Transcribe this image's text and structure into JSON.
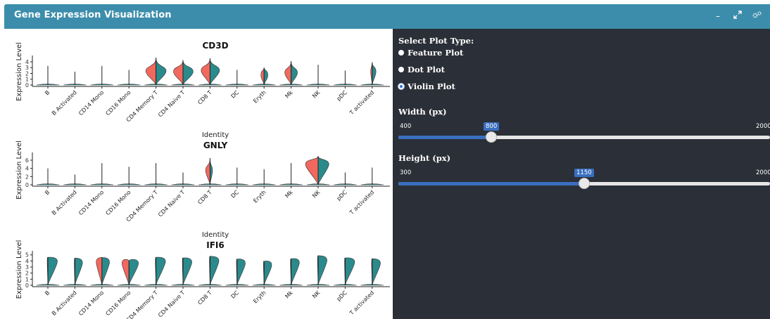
{
  "header": {
    "title": "Gene Expression Visualization",
    "color": "#3c8dab"
  },
  "controls": {
    "plot_type_label": "Select Plot Type:",
    "plot_types": [
      {
        "label": "Feature Plot",
        "selected": false
      },
      {
        "label": "Dot Plot",
        "selected": false
      },
      {
        "label": "Violin Plot",
        "selected": true
      }
    ],
    "width": {
      "label": "Width (px)",
      "min": 400,
      "max": 2000,
      "value": 800,
      "min_text": "400",
      "max_text": "2000",
      "value_text": "800"
    },
    "height": {
      "label": "Height (px)",
      "min": 300,
      "max": 2000,
      "value": 1150,
      "min_text": "300",
      "max_text": "2000",
      "value_text": "1150"
    }
  },
  "chart_data": {
    "type": "violin",
    "split_colors": {
      "left": "#f0685e",
      "right": "#2a8a8c"
    },
    "categories": [
      "B",
      "B Activated",
      "CD14 Mono",
      "CD16 Mono",
      "CD4 Memory T",
      "CD4 Naive T",
      "CD8 T",
      "DC",
      "Eryth",
      "Mk",
      "NK",
      "pDC",
      "T activated"
    ],
    "ylabel": "Expression Level",
    "xlabel": "Identity",
    "panels": [
      {
        "title": "CD3D",
        "ylim": [
          0,
          4.6
        ],
        "ticks": [
          "0",
          "1",
          "2",
          "3",
          "4"
        ],
        "tick_values": [
          0,
          1,
          2,
          3,
          4
        ],
        "max_values": [
          3.3,
          2.3,
          3.3,
          2.6,
          4.7,
          4.3,
          4.6,
          2.6,
          3.0,
          4.1,
          3.5,
          2.5,
          3.9
        ],
        "left_width": [
          0.0,
          0.0,
          0.0,
          0.0,
          0.8,
          0.75,
          0.7,
          0.0,
          0.25,
          0.5,
          0.0,
          0.0,
          0.12
        ],
        "right_width": [
          0.0,
          0.0,
          0.0,
          0.0,
          0.8,
          0.8,
          0.75,
          0.0,
          0.3,
          0.5,
          0.0,
          0.0,
          0.3
        ],
        "mode_value": [
          0,
          0,
          0,
          0,
          2.4,
          2.3,
          2.5,
          0,
          1.7,
          2.1,
          0,
          0,
          2.3
        ]
      },
      {
        "title": "GNLY",
        "ylim": [
          0,
          7.2
        ],
        "ticks": [
          "0",
          "2",
          "4",
          "6"
        ],
        "tick_values": [
          0,
          2,
          4,
          6
        ],
        "max_values": [
          4.0,
          2.5,
          5.3,
          4.4,
          5.3,
          3.0,
          6.5,
          4.2,
          3.8,
          5.3,
          7.0,
          3.0,
          4.2
        ],
        "left_width": [
          0.0,
          0.0,
          0.0,
          0.0,
          0.0,
          0.0,
          0.35,
          0.0,
          0.0,
          0.0,
          1.0,
          0.0,
          0.0
        ],
        "right_width": [
          0.0,
          0.0,
          0.0,
          0.0,
          0.0,
          0.0,
          0.2,
          0.0,
          0.0,
          0.0,
          0.85,
          0.0,
          0.0
        ],
        "mode_value": [
          0,
          0,
          0,
          0,
          0,
          0,
          3.5,
          0,
          0,
          0,
          5.0,
          0,
          0
        ]
      },
      {
        "title": "IFI6",
        "ylim": [
          0,
          5.2
        ],
        "ticks": [
          "0",
          "1",
          "2",
          "3",
          "4",
          "5"
        ],
        "tick_values": [
          0,
          1,
          2,
          3,
          4,
          5
        ],
        "max_values": [
          4.6,
          4.5,
          4.6,
          4.0,
          4.6,
          4.5,
          4.8,
          4.3,
          3.9,
          4.3,
          4.9,
          4.5,
          4.4
        ],
        "left_width": [
          0.05,
          0.05,
          0.45,
          0.55,
          0.05,
          0.05,
          0.05,
          0.05,
          0.05,
          0.05,
          0.05,
          0.05,
          0.05
        ],
        "right_width": [
          0.75,
          0.6,
          0.6,
          0.75,
          0.75,
          0.7,
          0.7,
          0.65,
          0.6,
          0.65,
          0.7,
          0.75,
          0.65
        ],
        "mode_value": [
          3.9,
          3.7,
          3.8,
          3.6,
          3.9,
          3.8,
          4.0,
          3.6,
          3.3,
          3.7,
          4.1,
          3.8,
          3.6
        ]
      }
    ]
  }
}
